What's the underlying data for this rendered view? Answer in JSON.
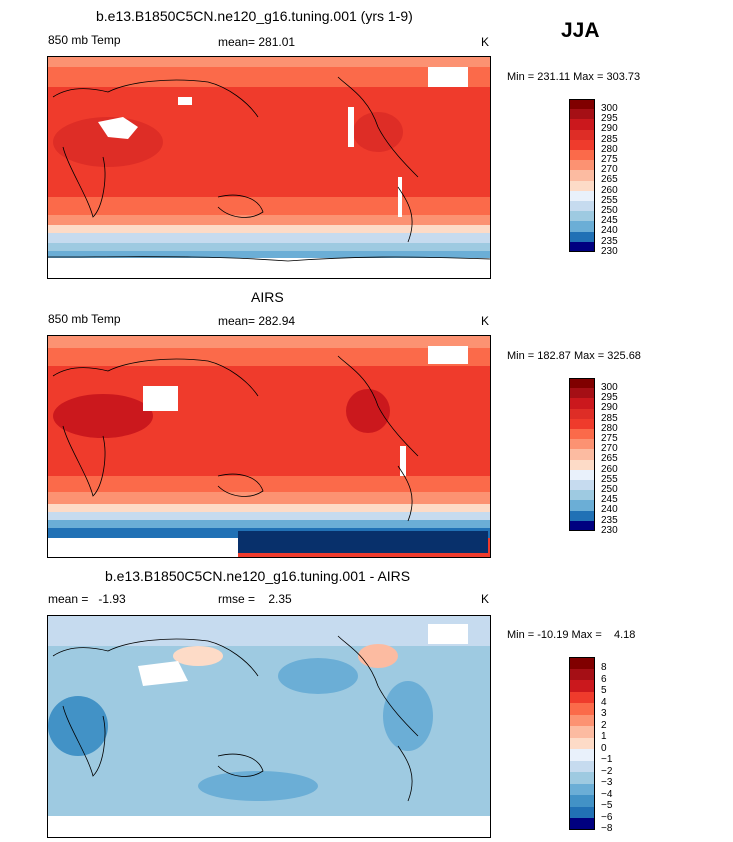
{
  "season": "JJA",
  "colors": {
    "warm": [
      "#fddbc7",
      "#fcbba1",
      "#fc9272",
      "#fb6a4a",
      "#ef3b2c",
      "#de2d26",
      "#cb181d",
      "#a50f15",
      "#800000"
    ],
    "cool": [
      "#e9f1fb",
      "#c6dbef",
      "#9ecae1",
      "#6baed6",
      "#4292c6",
      "#2171b5",
      "#08519c",
      "#08306b",
      "#000080"
    ],
    "land": "#000000"
  },
  "panels": [
    {
      "title": "b.e13.B1850C5CN.ne120_g16.tuning.001 (yrs 1-9)",
      "left_label": "850 mb Temp",
      "center_label": "mean= 281.01",
      "units": "K",
      "minmax": "Min = 231.11 Max = 303.73",
      "colorbar": [
        "300",
        "295",
        "290",
        "285",
        "280",
        "275",
        "270",
        "265",
        "260",
        "255",
        "250",
        "245",
        "240",
        "235",
        "230"
      ]
    },
    {
      "title": "AIRS",
      "left_label": "850 mb Temp",
      "center_label": "mean= 282.94",
      "units": "K",
      "minmax": "Min = 182.87 Max = 325.68",
      "colorbar": [
        "300",
        "295",
        "290",
        "285",
        "280",
        "275",
        "270",
        "265",
        "260",
        "255",
        "250",
        "245",
        "240",
        "235",
        "230"
      ]
    },
    {
      "title": "b.e13.B1850C5CN.ne120_g16.tuning.001 - AIRS",
      "left_label": "mean =   -1.93",
      "center_label": "rmse =    2.35",
      "units": "K",
      "minmax": "Min = -10.19 Max =    4.18",
      "colorbar": [
        "8",
        "6",
        "5",
        "4",
        "3",
        "2",
        "1",
        "0",
        "−1",
        "−2",
        "−3",
        "−4",
        "−5",
        "−6",
        "−8"
      ]
    }
  ]
}
